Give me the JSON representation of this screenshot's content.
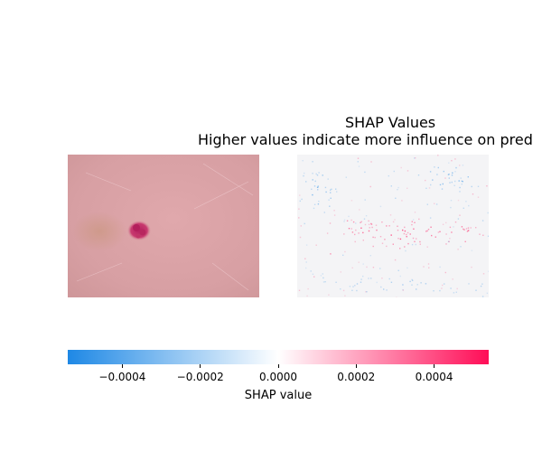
{
  "chart_data": {
    "type": "heatmap",
    "title": "SHAP Values",
    "subtitle": "Higher values indicate more influence on pred",
    "colorbar": {
      "label": "SHAP value",
      "range": [
        -0.00054,
        0.00054
      ],
      "ticks": [
        -0.0004,
        -0.0002,
        0.0,
        0.0002,
        0.0004
      ],
      "tick_labels": [
        "−0.0004",
        "−0.0002",
        "0.0000",
        "0.0002",
        "0.0004"
      ],
      "colors": {
        "negative": "#1e88e5",
        "zero": "#ffffff",
        "positive": "#ff0d57"
      }
    },
    "panels": [
      {
        "name": "input-image",
        "content": "skin lesion photograph",
        "skin_color": "#d7a0a4",
        "lesion_color": "#c8326e"
      },
      {
        "name": "shap-overlay",
        "dominant_positive_region": "center band",
        "dominant_negative_region": "upper corners and bottom edge"
      }
    ]
  }
}
